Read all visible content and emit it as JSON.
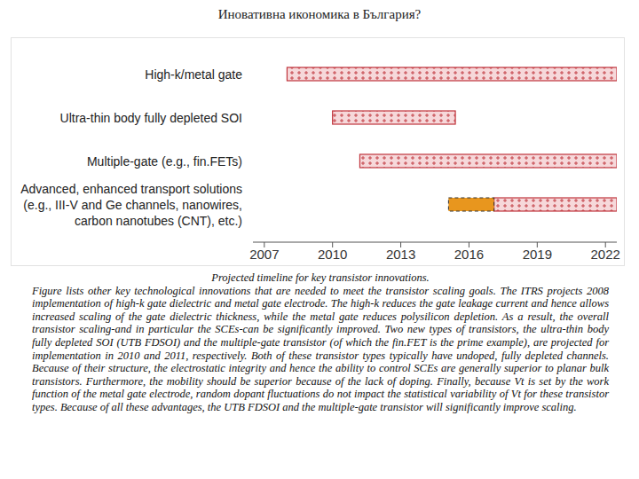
{
  "title": "Иновативна икономика в България?",
  "chart_data": {
    "type": "bar",
    "orientation": "horizontal",
    "categories": [
      "High-k/metal gate",
      "Ultra-thin body fully depleted SOI",
      "Multiple-gate (e.g., fin.FETs)",
      "Advanced, enhanced transport solutions\n(e.g., III-V and Ge channels, nanowires,\ncarbon nanotubes (CNT), etc.)"
    ],
    "series": [
      {
        "color": "#c0343c",
        "values": [
          [
            2008,
            2022.5
          ],
          [
            2010,
            2015.4
          ],
          [
            2011.2,
            2022.5
          ],
          [
            2017.1,
            2022.5
          ]
        ]
      },
      {
        "color": "#e8961e",
        "line_style": "dashed",
        "values": [
          null,
          null,
          null,
          [
            2015.1,
            2017.1
          ]
        ]
      }
    ],
    "xlim": [
      2006.5,
      2022.5
    ],
    "xticks": [
      2007,
      2010,
      2013,
      2016,
      2019,
      2022
    ],
    "grid": false
  },
  "caption": {
    "title": "Projected timeline for key transistor innovations.",
    "text": "Figure lists other key technological innovations that are needed to meet the transistor scaling goals. The ITRS projects 2008 implementation of high-k gate dielectric and metal gate electrode. The high-k reduces the gate leakage current and hence allows increased scaling of the gate dielectric thickness, while the metal gate reduces polysilicon depletion. As a result, the overall transistor scaling-and in particular the SCEs-can be significantly improved. Two new types of transistors, the ultra-thin body fully depleted SOI (UTB FDSOI) and the multiple-gate transistor (of which the fin.FET is the prime example), are projected for implementation in 2010 and 2011, respectively. Both of these transistor types typically have undoped, fully depleted channels. Because of their structure, the electrostatic integrity and hence the ability to control SCEs are generally superior to planar bulk transistors. Furthermore, the mobility should be superior because of the lack of doping. Finally, because Vt is set by the work function of the metal gate electrode, random dopant fluctuations do not impact the statistical variability of Vt for these transistor types. Because of all these advantages, the UTB FDSOI and the multiple-gate transistor will significantly improve scaling."
  }
}
